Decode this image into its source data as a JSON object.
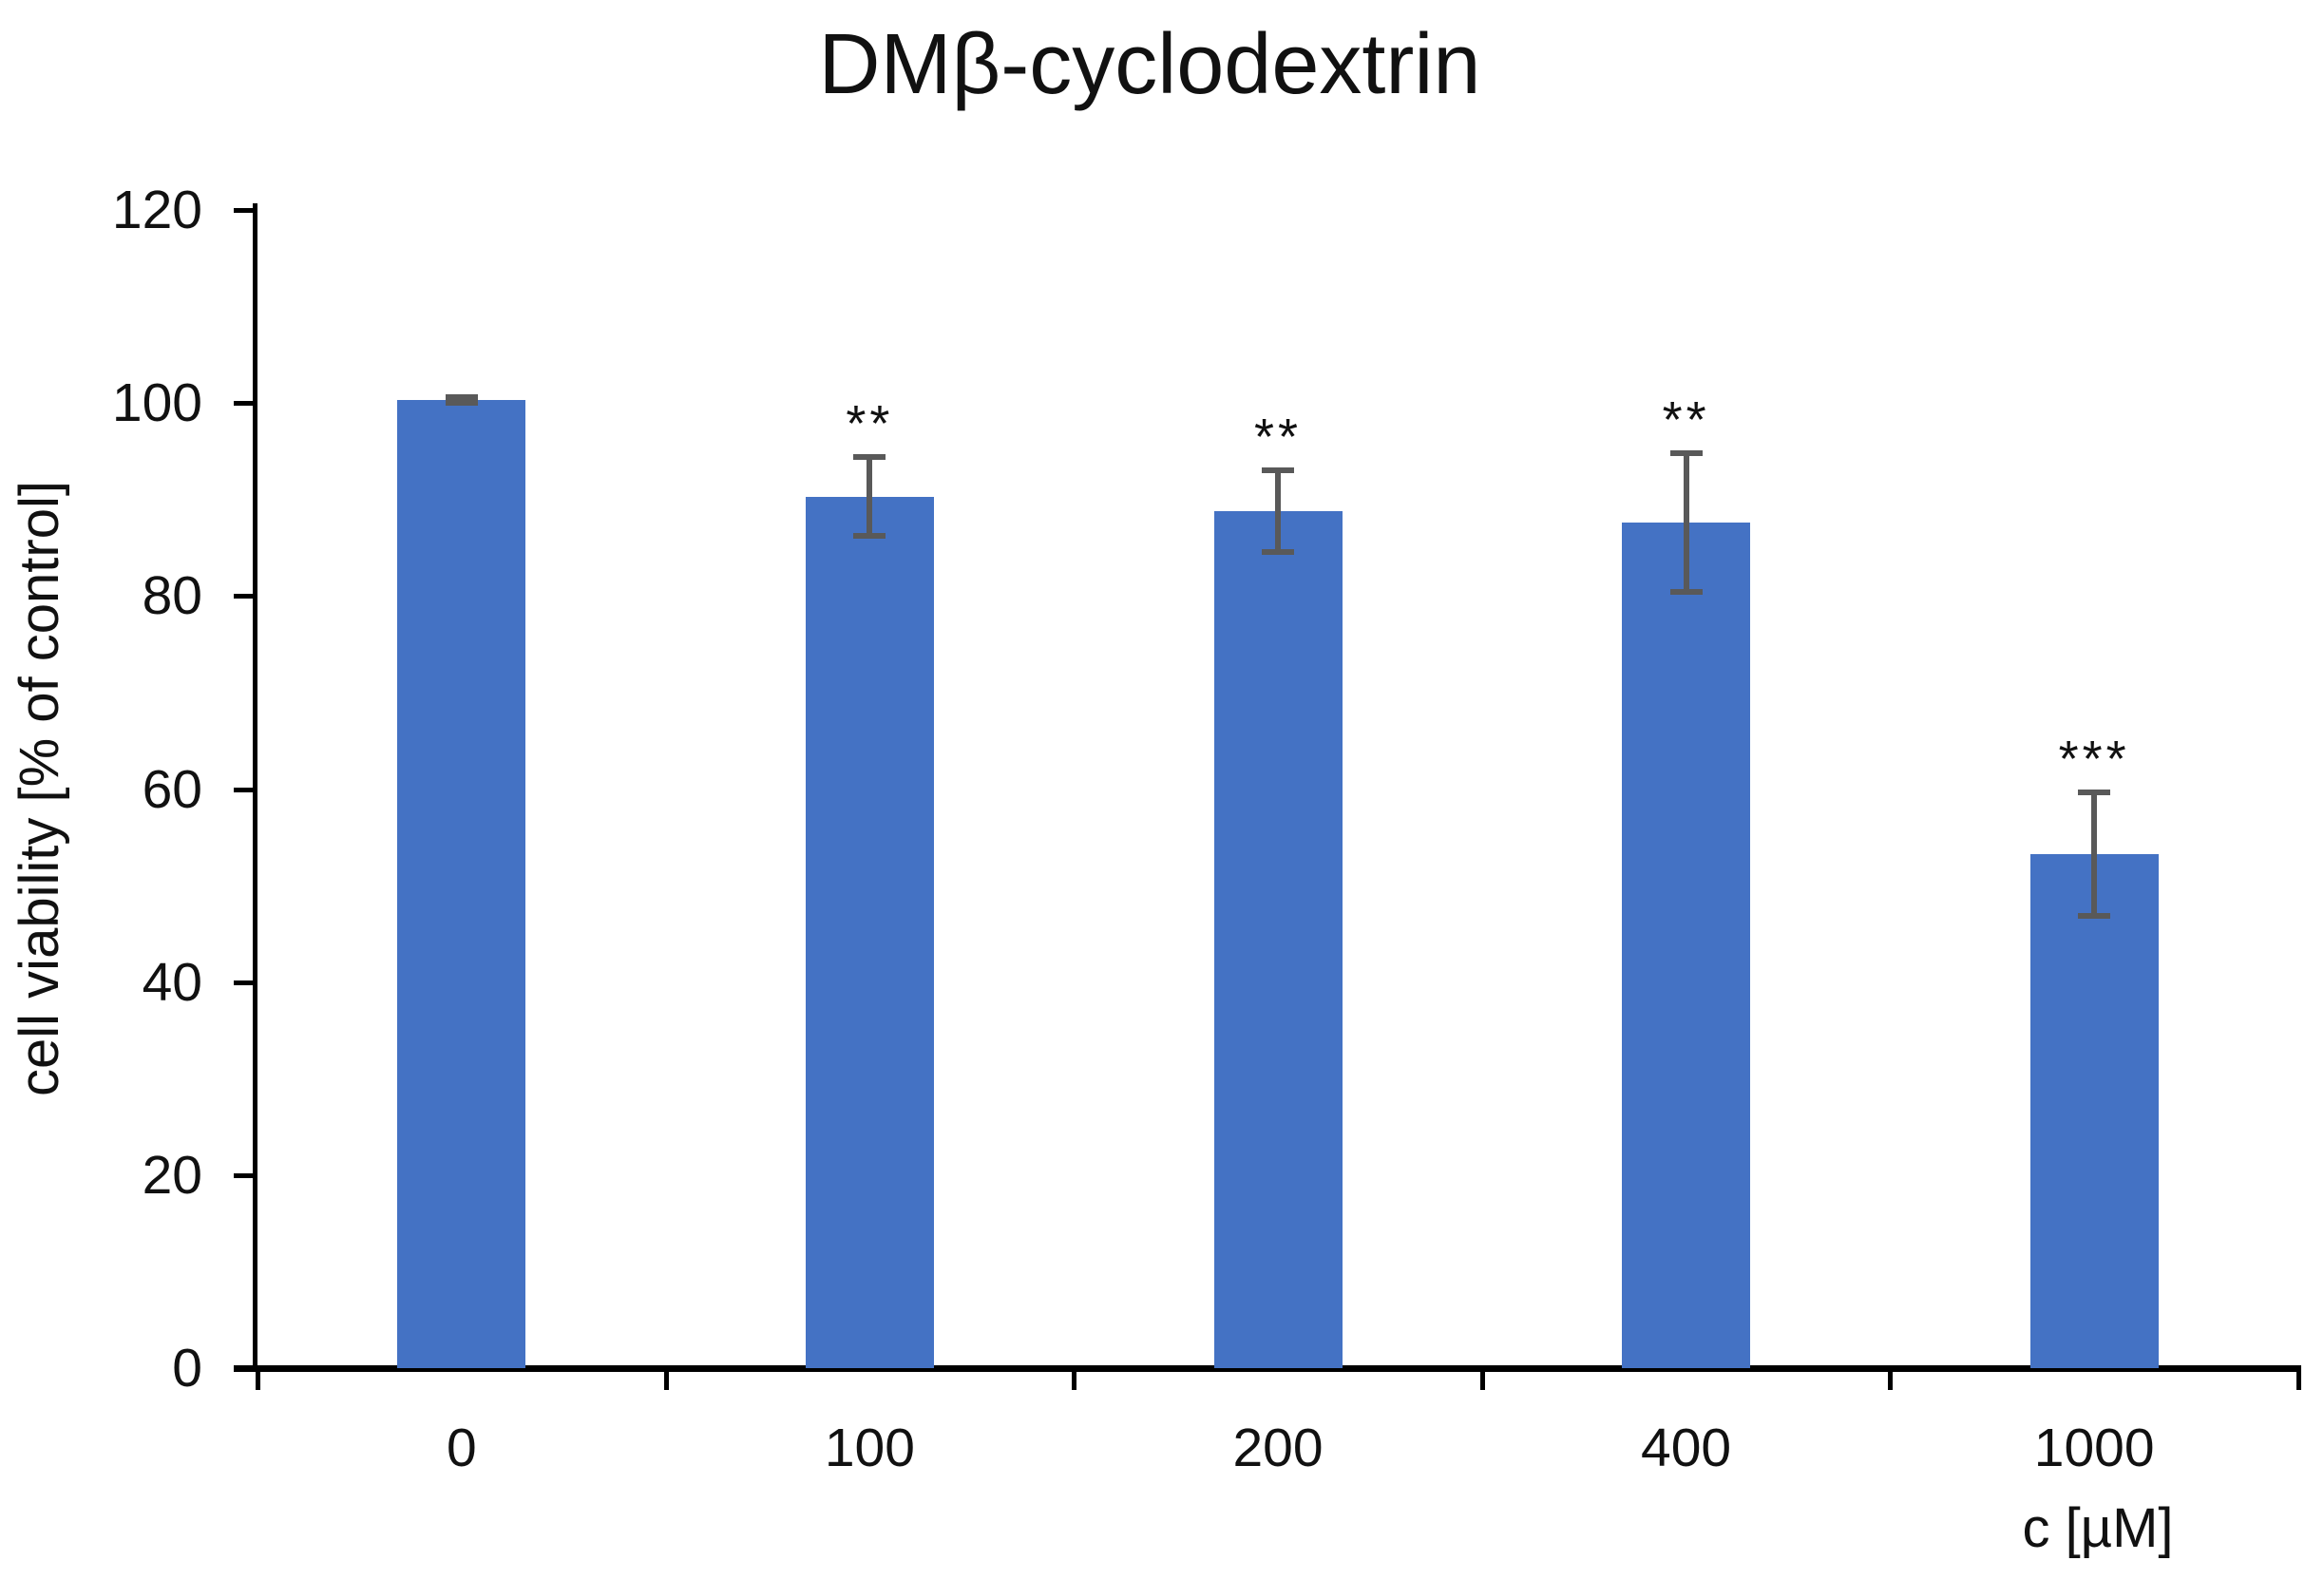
{
  "chart_data": {
    "type": "bar",
    "title": "DMβ-cyclodextrin",
    "xlabel": "c [µM]",
    "ylabel": "cell viability [% of control]",
    "categories": [
      "0",
      "100",
      "200",
      "400",
      "1000"
    ],
    "values": [
      100,
      90,
      88.5,
      87.3,
      53
    ],
    "errors": [
      0.3,
      4.1,
      4.2,
      7.2,
      6.4
    ],
    "significance": [
      "",
      "**",
      "**",
      "**",
      "***"
    ],
    "ylim": [
      0,
      120
    ],
    "yticks": [
      0,
      20,
      40,
      60,
      80,
      100,
      120
    ],
    "grid": "off",
    "legend": "none",
    "bar_color": "#4472C4",
    "error_color": "#595959",
    "axis_color": "#000000",
    "text_color": "#111111"
  }
}
